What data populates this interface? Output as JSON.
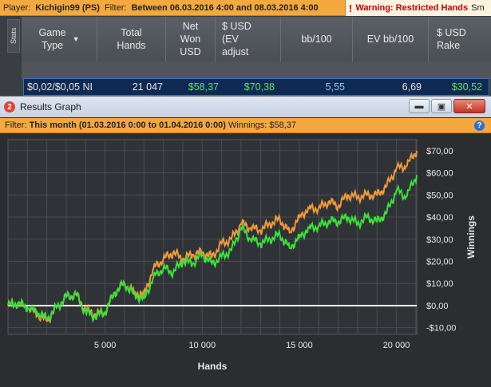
{
  "topbar": {
    "player_label": "Player:",
    "player_value": "Kichigin99 (PS)",
    "filter_label": "Filter:",
    "filter_value": "Between 06.03.2016 4:00 and 08.03.2016 4:00",
    "warning_icon": "!",
    "warning_text": "Warning: Restricted Hands",
    "warning_trail": "Sm"
  },
  "stats_tab": "Stats",
  "grid": {
    "columns": [
      "Game\nType",
      "Total\nHands",
      "Net\nWon\nUSD",
      "$ USD\n(EV\nadjust",
      "bb/100",
      "EV bb/100",
      "$ USD\nRake"
    ],
    "row": [
      "$0,02/$0,05 NI",
      "21 047",
      "$58,37",
      "$70,38",
      "5,55",
      "6,69",
      "$30,52"
    ]
  },
  "window": {
    "title": "Results Graph",
    "icon_label": "2",
    "btn_min": "▬",
    "btn_max": "▣",
    "btn_close": "✕",
    "filter_label": "Filter:",
    "filter_value": "This month (01.03.2016 0:00 to 01.04.2016 0:00)",
    "winnings_label": "Winnings:",
    "winnings_value": "$58,37",
    "help_icon": "?"
  },
  "chart_data": {
    "type": "line",
    "xlabel": "Hands",
    "ylabel": "Winnings",
    "xlim": [
      0,
      21047
    ],
    "ylim": [
      -13,
      75
    ],
    "x_ticks": [
      5000,
      10000,
      15000,
      20000
    ],
    "x_tick_labels": [
      "5 000",
      "10 000",
      "15 000",
      "20 000"
    ],
    "y_ticks": [
      -10,
      0,
      10,
      20,
      30,
      40,
      50,
      60,
      70
    ],
    "y_tick_labels": [
      "-$10,00",
      "$0,00",
      "$10,00",
      "$20,00",
      "$30,00",
      "$40,00",
      "$50,00",
      "$60,00",
      "$70,00"
    ],
    "grid": true,
    "colors": {
      "net_won": "#3de03a",
      "ev_adjusted": "#f09a3a",
      "zero_line": "#ffffff",
      "grid": "#4a4d52"
    },
    "series": [
      {
        "color_key": "ev_adjusted",
        "points": [
          [
            0,
            0
          ],
          [
            500,
            1
          ],
          [
            1000,
            -1
          ],
          [
            1500,
            -4
          ],
          [
            2000,
            -7
          ],
          [
            2500,
            -1
          ],
          [
            3000,
            4
          ],
          [
            3500,
            5
          ],
          [
            4000,
            -2
          ],
          [
            4500,
            -4
          ],
          [
            5000,
            -3
          ],
          [
            5500,
            6
          ],
          [
            6000,
            10
          ],
          [
            6500,
            6
          ],
          [
            7000,
            5
          ],
          [
            7500,
            17
          ],
          [
            8000,
            21
          ],
          [
            8500,
            24
          ],
          [
            9000,
            21
          ],
          [
            9500,
            23
          ],
          [
            10000,
            24
          ],
          [
            10500,
            22
          ],
          [
            11000,
            28
          ],
          [
            11500,
            30
          ],
          [
            12000,
            37
          ],
          [
            12500,
            35
          ],
          [
            13000,
            34
          ],
          [
            13500,
            37
          ],
          [
            14000,
            39
          ],
          [
            14500,
            33
          ],
          [
            15000,
            40
          ],
          [
            15500,
            44
          ],
          [
            16000,
            44
          ],
          [
            16500,
            47
          ],
          [
            17000,
            45
          ],
          [
            17500,
            50
          ],
          [
            18000,
            49
          ],
          [
            18500,
            50
          ],
          [
            19000,
            50
          ],
          [
            19500,
            54
          ],
          [
            20000,
            62
          ],
          [
            20500,
            63
          ],
          [
            21047,
            70
          ]
        ]
      },
      {
        "color_key": "net_won",
        "points": [
          [
            0,
            0
          ],
          [
            500,
            1
          ],
          [
            1000,
            -1
          ],
          [
            1500,
            -3
          ],
          [
            2000,
            -6
          ],
          [
            2500,
            -1
          ],
          [
            3000,
            4
          ],
          [
            3500,
            5
          ],
          [
            4000,
            -3
          ],
          [
            4500,
            -5
          ],
          [
            5000,
            -3
          ],
          [
            5500,
            6
          ],
          [
            6000,
            10
          ],
          [
            6500,
            5
          ],
          [
            7000,
            3
          ],
          [
            7500,
            13
          ],
          [
            8000,
            17
          ],
          [
            8500,
            15
          ],
          [
            9000,
            20
          ],
          [
            9500,
            19
          ],
          [
            10000,
            23
          ],
          [
            10500,
            19
          ],
          [
            11000,
            22
          ],
          [
            11500,
            25
          ],
          [
            12000,
            35
          ],
          [
            12500,
            30
          ],
          [
            13000,
            28
          ],
          [
            13500,
            30
          ],
          [
            14000,
            32
          ],
          [
            14500,
            26
          ],
          [
            15000,
            31
          ],
          [
            15500,
            35
          ],
          [
            16000,
            36
          ],
          [
            16500,
            38
          ],
          [
            17000,
            38
          ],
          [
            17500,
            40
          ],
          [
            18000,
            37
          ],
          [
            18500,
            40
          ],
          [
            19000,
            38
          ],
          [
            19500,
            42
          ],
          [
            20000,
            52
          ],
          [
            20500,
            49
          ],
          [
            21047,
            59
          ]
        ]
      }
    ]
  }
}
